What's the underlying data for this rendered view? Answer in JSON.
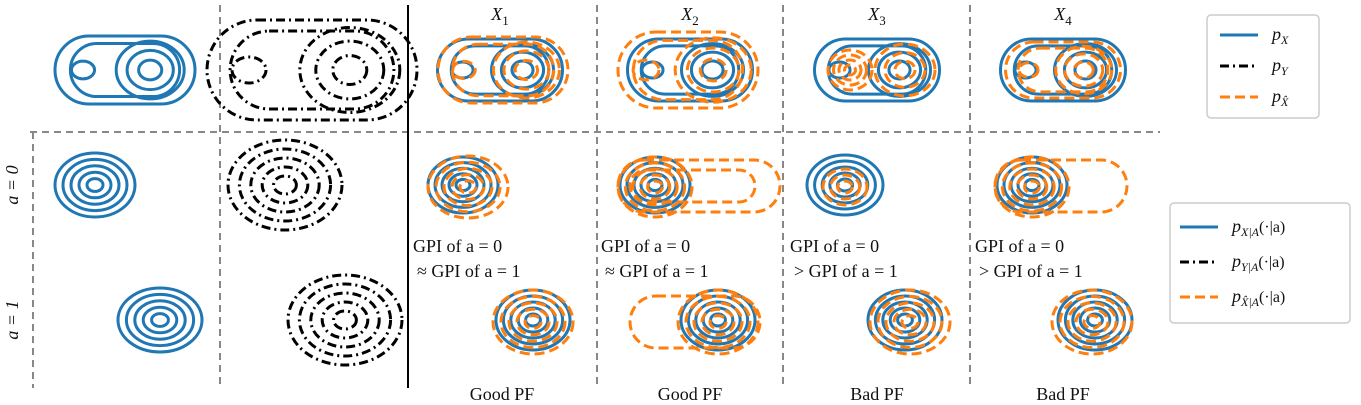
{
  "column_headers": [
    {
      "base": "X",
      "sub": "1"
    },
    {
      "base": "X",
      "sub": "2"
    },
    {
      "base": "X",
      "sub": "3"
    },
    {
      "base": "X",
      "sub": "4"
    }
  ],
  "row_labels": [
    "a = 0",
    "a = 1"
  ],
  "annotations": [
    [
      "GPI of a = 0",
      "≈ GPI of a = 1"
    ],
    [
      "GPI of a = 0",
      "≈ GPI of a = 1"
    ],
    [
      "GPI of a = 0",
      "> GPI of a = 1"
    ],
    [
      "GPI of a = 0",
      "> GPI of a = 1"
    ]
  ],
  "footer_labels": [
    "Good PF",
    "Good PF",
    "Bad PF",
    "Bad PF"
  ],
  "legend_marginal": [
    {
      "base": "p",
      "sub": "X"
    },
    {
      "base": "p",
      "sub": "Y"
    },
    {
      "base": "p",
      "sub": "X̂"
    }
  ],
  "legend_conditional": [
    {
      "base": "p",
      "sub": "X|A",
      "suffix": "(·|a)"
    },
    {
      "base": "p",
      "sub": "Y|A",
      "suffix": "(·|a)"
    },
    {
      "base": "p",
      "sub": "X̂|A",
      "suffix": "(·|a)"
    }
  ]
}
